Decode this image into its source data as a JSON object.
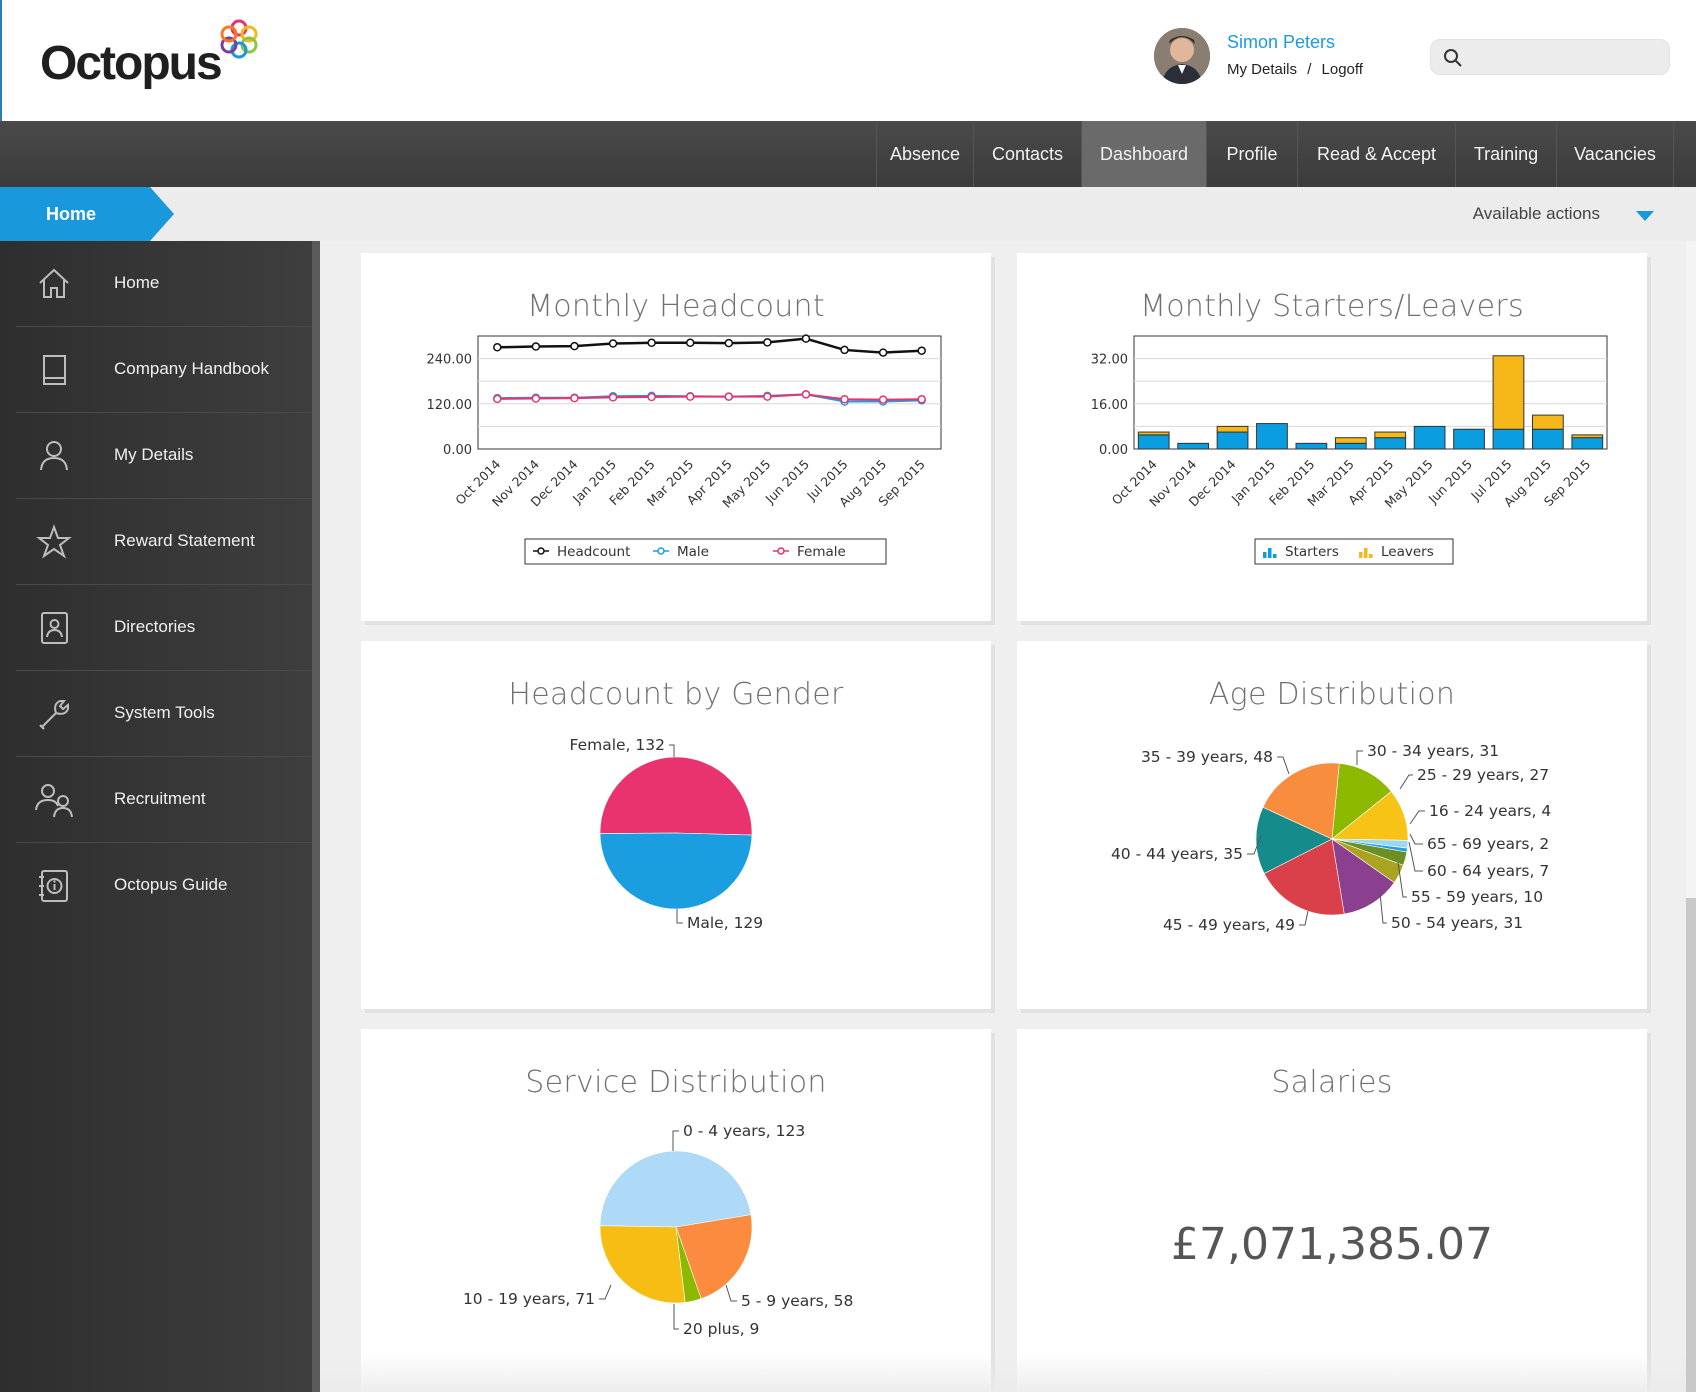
{
  "app": {
    "logo_text": "Octopus"
  },
  "user": {
    "name": "Simon Peters",
    "my_details": "My Details",
    "separator": "/",
    "logoff": "Logoff"
  },
  "search": {
    "placeholder": ""
  },
  "topnav": {
    "tabs": [
      {
        "label": "Absence",
        "active": false
      },
      {
        "label": "Contacts",
        "active": false
      },
      {
        "label": "Dashboard",
        "active": true
      },
      {
        "label": "Profile",
        "active": false
      },
      {
        "label": "Read & Accept",
        "active": false
      },
      {
        "label": "Training",
        "active": false
      },
      {
        "label": "Vacancies",
        "active": false
      }
    ]
  },
  "subbar": {
    "breadcrumb": "Home",
    "actions_label": "Available actions"
  },
  "sidebar": {
    "items": [
      {
        "label": "Home",
        "icon": "home-icon"
      },
      {
        "label": "Company Handbook",
        "icon": "book-icon"
      },
      {
        "label": "My Details",
        "icon": "user-icon"
      },
      {
        "label": "Reward Statement",
        "icon": "star-icon"
      },
      {
        "label": "Directories",
        "icon": "contact-card-icon"
      },
      {
        "label": "System Tools",
        "icon": "wrench-icon"
      },
      {
        "label": "Recruitment",
        "icon": "people-icon"
      },
      {
        "label": "Octopus Guide",
        "icon": "info-book-icon"
      }
    ]
  },
  "colors": {
    "accent": "#1a98dc",
    "headcount": "#111111",
    "male": "#1a9ee0",
    "female": "#e8336f",
    "starters": "#0a9ee0",
    "leavers": "#f6b818"
  },
  "chart_data": [
    {
      "type": "line",
      "title": "Monthly Headcount",
      "x": [
        "Oct 2014",
        "Nov 2014",
        "Dec 2014",
        "Jan 2015",
        "Feb 2015",
        "Mar 2015",
        "Apr 2015",
        "May 2015",
        "Jun 2015",
        "Jul 2015",
        "Aug 2015",
        "Sep 2015"
      ],
      "yticks": [
        "0.00",
        "120.00",
        "240.00"
      ],
      "ylim": [
        0,
        300
      ],
      "series": [
        {
          "name": "Headcount",
          "values": [
            270,
            272,
            273,
            280,
            282,
            282,
            281,
            283,
            293,
            263,
            256,
            261
          ]
        },
        {
          "name": "Male",
          "values": [
            135,
            136,
            136,
            140,
            141,
            140,
            139,
            141,
            145,
            126,
            126,
            129
          ]
        },
        {
          "name": "Female",
          "values": [
            133,
            134,
            135,
            137,
            138,
            139,
            139,
            139,
            145,
            132,
            131,
            132
          ]
        }
      ],
      "legend": "bottom"
    },
    {
      "type": "bar",
      "title": "Monthly Starters/Leavers",
      "categories": [
        "Oct 2014",
        "Nov 2014",
        "Dec 2014",
        "Jan 2015",
        "Feb 2015",
        "Mar 2015",
        "Apr 2015",
        "May 2015",
        "Jun 2015",
        "Jul 2015",
        "Aug 2015",
        "Sep 2015"
      ],
      "yticks": [
        "0.00",
        "16.00",
        "32.00"
      ],
      "ylim": [
        0,
        40
      ],
      "stacked": true,
      "series": [
        {
          "name": "Starters",
          "values": [
            5,
            2,
            6,
            9,
            2,
            2,
            4,
            8,
            7,
            7,
            7,
            4
          ]
        },
        {
          "name": "Leavers",
          "values": [
            1,
            0,
            2,
            0,
            0,
            2,
            2,
            0,
            0,
            26,
            5,
            1
          ]
        }
      ],
      "legend": "bottom"
    },
    {
      "type": "pie",
      "title": "Headcount by Gender",
      "slices": [
        {
          "label": "Female, 132",
          "value": 132
        },
        {
          "label": "Male, 129",
          "value": 129
        }
      ]
    },
    {
      "type": "pie",
      "title": "Age Distribution",
      "slices": [
        {
          "label": "30 - 34 years, 31",
          "value": 31
        },
        {
          "label": "25 - 29 years, 27",
          "value": 27
        },
        {
          "label": "16 - 24 years, 4",
          "value": 4
        },
        {
          "label": "65 - 69 years, 2",
          "value": 2
        },
        {
          "label": "60 - 64 years, 7",
          "value": 7
        },
        {
          "label": "55 - 59 years, 10",
          "value": 10
        },
        {
          "label": "50 - 54 years, 31",
          "value": 31
        },
        {
          "label": "45 - 49 years, 49",
          "value": 49
        },
        {
          "label": "40 - 44 years, 35",
          "value": 35
        },
        {
          "label": "35 - 39 years, 48",
          "value": 48
        }
      ]
    },
    {
      "type": "pie",
      "title": "Service Distribution",
      "slices": [
        {
          "label": "0 - 4 years, 123",
          "value": 123
        },
        {
          "label": "5 - 9 years, 58",
          "value": 58
        },
        {
          "label": "20 plus, 9",
          "value": 9
        },
        {
          "label": "10 - 19 years, 71",
          "value": 71
        }
      ]
    }
  ],
  "salaries": {
    "title": "Salaries",
    "value": "£7,071,385.07"
  }
}
